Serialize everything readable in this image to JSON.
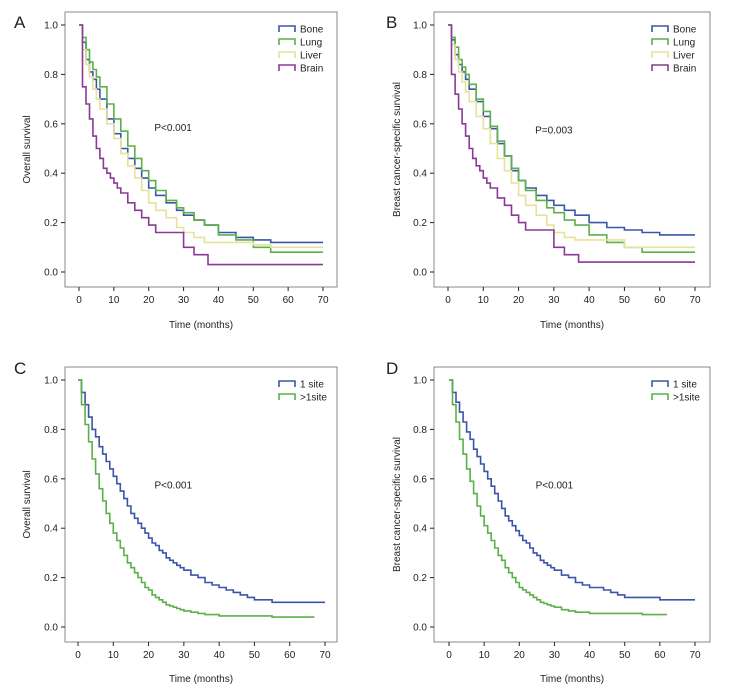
{
  "figure": {
    "colors": {
      "Bone": "#3b56a8",
      "Lung": "#5bb04a",
      "Liver": "#e6e29a",
      "Brain": "#8a3a96",
      "1 site": "#3b56a8",
      ">1site": "#5bb04a",
      "frame": "#8a8a8a",
      "axis": "#222222"
    }
  },
  "chart_data": [
    {
      "panel": "A",
      "type": "line",
      "step": true,
      "xlabel": "Time (months)",
      "ylabel": "Overall survival",
      "xlim": [
        0,
        70
      ],
      "ylim": [
        0,
        1.0
      ],
      "xticks": [
        0,
        10,
        20,
        30,
        40,
        50,
        60,
        70
      ],
      "xtick_labels": [
        "0",
        "10",
        "20",
        "30",
        "40",
        "50",
        "60",
        "70"
      ],
      "yticks": [
        0,
        0.2,
        0.4,
        0.6,
        0.8,
        1.0
      ],
      "ytick_labels": [
        "0.0",
        "0.2",
        "0.4",
        "0.6",
        "0.8",
        "1.0"
      ],
      "annotation": "P<0.001",
      "annotation_pos": [
        27,
        0.57
      ],
      "legend": [
        "Bone",
        "Lung",
        "Liver",
        "Brain"
      ],
      "series": [
        {
          "name": "Bone",
          "x": [
            0,
            1,
            2,
            3,
            4,
            5,
            6,
            8,
            10,
            12,
            14,
            16,
            18,
            20,
            22,
            25,
            28,
            30,
            33,
            36,
            40,
            45,
            50,
            55,
            60,
            70
          ],
          "y": [
            1.0,
            0.93,
            0.86,
            0.81,
            0.78,
            0.74,
            0.7,
            0.62,
            0.56,
            0.5,
            0.46,
            0.42,
            0.38,
            0.34,
            0.31,
            0.28,
            0.25,
            0.23,
            0.21,
            0.19,
            0.16,
            0.14,
            0.13,
            0.12,
            0.12,
            0.12
          ]
        },
        {
          "name": "Lung",
          "x": [
            0,
            1,
            2,
            3,
            4,
            5,
            6,
            8,
            10,
            12,
            14,
            16,
            18,
            20,
            22,
            25,
            28,
            30,
            33,
            36,
            40,
            45,
            50,
            55,
            60,
            70
          ],
          "y": [
            1.0,
            0.95,
            0.9,
            0.85,
            0.82,
            0.79,
            0.75,
            0.68,
            0.62,
            0.57,
            0.51,
            0.46,
            0.41,
            0.37,
            0.33,
            0.29,
            0.26,
            0.24,
            0.21,
            0.19,
            0.15,
            0.13,
            0.1,
            0.08,
            0.08,
            0.08
          ]
        },
        {
          "name": "Liver",
          "x": [
            0,
            1,
            2,
            3,
            4,
            5,
            6,
            8,
            10,
            12,
            14,
            16,
            18,
            20,
            22,
            25,
            28,
            30,
            33,
            36,
            40,
            45,
            50,
            55,
            60,
            70
          ],
          "y": [
            1.0,
            0.9,
            0.84,
            0.79,
            0.74,
            0.7,
            0.66,
            0.6,
            0.54,
            0.48,
            0.43,
            0.38,
            0.33,
            0.28,
            0.25,
            0.22,
            0.18,
            0.16,
            0.14,
            0.12,
            0.12,
            0.12,
            0.11,
            0.1,
            0.1,
            0.1
          ]
        },
        {
          "name": "Brain",
          "x": [
            0,
            1,
            2,
            3,
            4,
            5,
            6,
            7,
            8,
            9,
            10,
            11,
            12,
            14,
            16,
            18,
            20,
            22,
            25,
            28,
            30,
            33,
            37,
            40,
            50,
            60,
            70
          ],
          "y": [
            1.0,
            0.75,
            0.68,
            0.62,
            0.55,
            0.5,
            0.46,
            0.42,
            0.4,
            0.38,
            0.36,
            0.34,
            0.32,
            0.28,
            0.25,
            0.22,
            0.19,
            0.16,
            0.16,
            0.16,
            0.1,
            0.07,
            0.03,
            0.03,
            0.03,
            0.03,
            0.03
          ]
        }
      ]
    },
    {
      "panel": "B",
      "type": "line",
      "step": true,
      "xlabel": "Time (months)",
      "ylabel": "Breast cancer-specific survival",
      "xlim": [
        0,
        70
      ],
      "ylim": [
        0,
        1.0
      ],
      "xticks": [
        0,
        10,
        20,
        30,
        40,
        50,
        60,
        70
      ],
      "xtick_labels": [
        "0",
        "10",
        "20",
        "30",
        "40",
        "50",
        "60",
        "70"
      ],
      "yticks": [
        0,
        0.2,
        0.4,
        0.6,
        0.8,
        1.0
      ],
      "ytick_labels": [
        "0.0",
        "0.2",
        "0.4",
        "0.6",
        "0.8",
        "1.0"
      ],
      "annotation": "P=0.003",
      "annotation_pos": [
        30,
        0.56
      ],
      "legend": [
        "Bone",
        "Lung",
        "Liver",
        "Brain"
      ],
      "series": [
        {
          "name": "Bone",
          "x": [
            0,
            1,
            2,
            3,
            4,
            5,
            6,
            8,
            10,
            12,
            14,
            16,
            18,
            20,
            22,
            25,
            28,
            30,
            33,
            36,
            40,
            45,
            50,
            55,
            60,
            70
          ],
          "y": [
            1.0,
            0.94,
            0.88,
            0.84,
            0.81,
            0.78,
            0.74,
            0.69,
            0.63,
            0.58,
            0.52,
            0.47,
            0.41,
            0.37,
            0.34,
            0.31,
            0.29,
            0.27,
            0.25,
            0.23,
            0.2,
            0.18,
            0.17,
            0.16,
            0.15,
            0.15
          ]
        },
        {
          "name": "Lung",
          "x": [
            0,
            1,
            2,
            3,
            4,
            5,
            6,
            8,
            10,
            12,
            14,
            16,
            18,
            20,
            22,
            25,
            28,
            30,
            33,
            36,
            40,
            45,
            50,
            55,
            60,
            70
          ],
          "y": [
            1.0,
            0.95,
            0.91,
            0.86,
            0.83,
            0.8,
            0.76,
            0.7,
            0.65,
            0.59,
            0.53,
            0.47,
            0.42,
            0.37,
            0.33,
            0.29,
            0.26,
            0.24,
            0.21,
            0.19,
            0.15,
            0.12,
            0.1,
            0.08,
            0.08,
            0.08
          ]
        },
        {
          "name": "Liver",
          "x": [
            0,
            1,
            2,
            3,
            4,
            5,
            6,
            8,
            10,
            12,
            14,
            16,
            18,
            20,
            22,
            25,
            28,
            30,
            33,
            36,
            40,
            45,
            50,
            55,
            60,
            70
          ],
          "y": [
            1.0,
            0.92,
            0.86,
            0.81,
            0.77,
            0.73,
            0.69,
            0.63,
            0.58,
            0.52,
            0.46,
            0.41,
            0.36,
            0.31,
            0.27,
            0.23,
            0.19,
            0.16,
            0.14,
            0.13,
            0.13,
            0.13,
            0.1,
            0.1,
            0.1,
            0.1
          ]
        },
        {
          "name": "Brain",
          "x": [
            0,
            1,
            2,
            3,
            4,
            5,
            6,
            7,
            8,
            9,
            10,
            11,
            12,
            14,
            16,
            18,
            20,
            22,
            25,
            28,
            30,
            33,
            37,
            40,
            50,
            60,
            70
          ],
          "y": [
            1.0,
            0.8,
            0.72,
            0.66,
            0.6,
            0.55,
            0.5,
            0.46,
            0.43,
            0.41,
            0.38,
            0.36,
            0.34,
            0.3,
            0.27,
            0.23,
            0.2,
            0.17,
            0.17,
            0.17,
            0.1,
            0.07,
            0.04,
            0.04,
            0.04,
            0.04,
            0.04
          ]
        }
      ]
    },
    {
      "panel": "C",
      "type": "line",
      "step": true,
      "xlabel": "Time (months)",
      "ylabel": "Overall survival",
      "xlim": [
        0,
        70
      ],
      "ylim": [
        0,
        1.0
      ],
      "xticks": [
        0,
        10,
        20,
        30,
        40,
        50,
        60,
        70
      ],
      "xtick_labels": [
        "0",
        "10",
        "20",
        "30",
        "40",
        "50",
        "60",
        "70"
      ],
      "yticks": [
        0,
        0.2,
        0.4,
        0.6,
        0.8,
        1.0
      ],
      "ytick_labels": [
        "0.0",
        "0.2",
        "0.4",
        "0.6",
        "0.8",
        "1.0"
      ],
      "annotation": "P<0.001",
      "annotation_pos": [
        27,
        0.56
      ],
      "legend": [
        "1 site",
        ">1site"
      ],
      "series": [
        {
          "name": "1 site",
          "x": [
            0,
            1,
            2,
            3,
            4,
            5,
            6,
            7,
            8,
            9,
            10,
            11,
            12,
            13,
            14,
            15,
            16,
            17,
            18,
            19,
            20,
            21,
            22,
            23,
            24,
            25,
            26,
            27,
            28,
            29,
            30,
            32,
            34,
            36,
            38,
            40,
            42,
            44,
            46,
            48,
            50,
            55,
            60,
            65,
            70
          ],
          "y": [
            1.0,
            0.95,
            0.9,
            0.85,
            0.8,
            0.77,
            0.73,
            0.7,
            0.67,
            0.64,
            0.61,
            0.58,
            0.55,
            0.52,
            0.49,
            0.46,
            0.44,
            0.42,
            0.4,
            0.38,
            0.36,
            0.34,
            0.33,
            0.31,
            0.3,
            0.28,
            0.27,
            0.26,
            0.25,
            0.24,
            0.23,
            0.21,
            0.2,
            0.18,
            0.17,
            0.16,
            0.15,
            0.14,
            0.13,
            0.12,
            0.11,
            0.1,
            0.1,
            0.1,
            0.1
          ]
        },
        {
          "name": ">1site",
          "x": [
            0,
            1,
            2,
            3,
            4,
            5,
            6,
            7,
            8,
            9,
            10,
            11,
            12,
            13,
            14,
            15,
            16,
            17,
            18,
            19,
            20,
            21,
            22,
            23,
            24,
            25,
            26,
            27,
            28,
            29,
            30,
            32,
            34,
            36,
            38,
            40,
            45,
            50,
            55,
            60,
            65,
            67
          ],
          "y": [
            1.0,
            0.9,
            0.82,
            0.75,
            0.68,
            0.62,
            0.56,
            0.51,
            0.46,
            0.42,
            0.38,
            0.35,
            0.32,
            0.29,
            0.26,
            0.24,
            0.22,
            0.2,
            0.18,
            0.16,
            0.15,
            0.13,
            0.12,
            0.11,
            0.1,
            0.09,
            0.085,
            0.08,
            0.075,
            0.07,
            0.065,
            0.06,
            0.055,
            0.05,
            0.05,
            0.045,
            0.045,
            0.045,
            0.04,
            0.04,
            0.04,
            0.04
          ]
        }
      ]
    },
    {
      "panel": "D",
      "type": "line",
      "step": true,
      "xlabel": "Time (months)",
      "ylabel": "Breast cancer-specific survival",
      "xlim": [
        0,
        70
      ],
      "ylim": [
        0,
        1.0
      ],
      "xticks": [
        0,
        10,
        20,
        30,
        40,
        50,
        60,
        70
      ],
      "xtick_labels": [
        "0",
        "10",
        "20",
        "30",
        "40",
        "50",
        "60",
        "70"
      ],
      "yticks": [
        0,
        0.2,
        0.4,
        0.6,
        0.8,
        1.0
      ],
      "ytick_labels": [
        "0.0",
        "0.2",
        "0.4",
        "0.6",
        "0.8",
        "1.0"
      ],
      "annotation": "P<0.001",
      "annotation_pos": [
        30,
        0.56
      ],
      "legend": [
        "1 site",
        ">1site"
      ],
      "series": [
        {
          "name": "1 site",
          "x": [
            0,
            1,
            2,
            3,
            4,
            5,
            6,
            7,
            8,
            9,
            10,
            11,
            12,
            13,
            14,
            15,
            16,
            17,
            18,
            19,
            20,
            21,
            22,
            23,
            24,
            25,
            26,
            27,
            28,
            29,
            30,
            32,
            34,
            36,
            38,
            40,
            42,
            44,
            46,
            48,
            50,
            55,
            60,
            65,
            70
          ],
          "y": [
            1.0,
            0.95,
            0.91,
            0.87,
            0.83,
            0.79,
            0.76,
            0.72,
            0.69,
            0.66,
            0.63,
            0.6,
            0.57,
            0.54,
            0.51,
            0.48,
            0.45,
            0.43,
            0.41,
            0.39,
            0.37,
            0.35,
            0.34,
            0.32,
            0.3,
            0.29,
            0.27,
            0.26,
            0.25,
            0.24,
            0.23,
            0.21,
            0.2,
            0.18,
            0.17,
            0.16,
            0.16,
            0.15,
            0.14,
            0.13,
            0.12,
            0.12,
            0.11,
            0.11,
            0.11
          ]
        },
        {
          "name": ">1site",
          "x": [
            0,
            1,
            2,
            3,
            4,
            5,
            6,
            7,
            8,
            9,
            10,
            11,
            12,
            13,
            14,
            15,
            16,
            17,
            18,
            19,
            20,
            21,
            22,
            23,
            24,
            25,
            26,
            27,
            28,
            29,
            30,
            32,
            34,
            36,
            38,
            40,
            45,
            50,
            55,
            60,
            62
          ],
          "y": [
            1.0,
            0.9,
            0.83,
            0.76,
            0.7,
            0.64,
            0.59,
            0.54,
            0.49,
            0.45,
            0.41,
            0.38,
            0.35,
            0.32,
            0.29,
            0.27,
            0.24,
            0.22,
            0.2,
            0.18,
            0.16,
            0.15,
            0.14,
            0.13,
            0.12,
            0.11,
            0.1,
            0.095,
            0.09,
            0.085,
            0.08,
            0.07,
            0.065,
            0.06,
            0.06,
            0.055,
            0.055,
            0.055,
            0.05,
            0.05,
            0.05
          ]
        }
      ]
    }
  ]
}
